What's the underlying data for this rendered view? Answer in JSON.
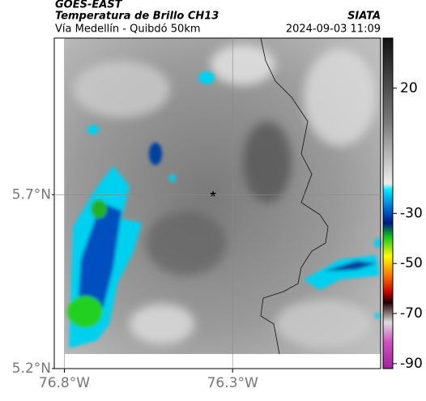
{
  "header": {
    "title": "GOES-EAST",
    "subtitle": "Temperatura de Brillo CH13",
    "brand": "SIATA",
    "route": "Vía Medellín - Quibdó 50km",
    "datetime": "2024-09-03 11:09"
  },
  "map": {
    "xlim": [
      -76.83,
      -75.86
    ],
    "ylim": [
      5.2,
      6.15
    ],
    "xticks": [
      {
        "value": -76.8,
        "label": "76.8°W"
      },
      {
        "value": -76.3,
        "label": "76.3°W"
      }
    ],
    "yticks": [
      {
        "value": 5.2,
        "label": "5.2°N"
      },
      {
        "value": 5.7,
        "label": "5.7°N"
      }
    ],
    "grid": true
  },
  "colorbar": {
    "lim": [
      -92,
      40
    ],
    "ticks": [
      20,
      -30,
      -50,
      -70,
      -90
    ]
  }
}
